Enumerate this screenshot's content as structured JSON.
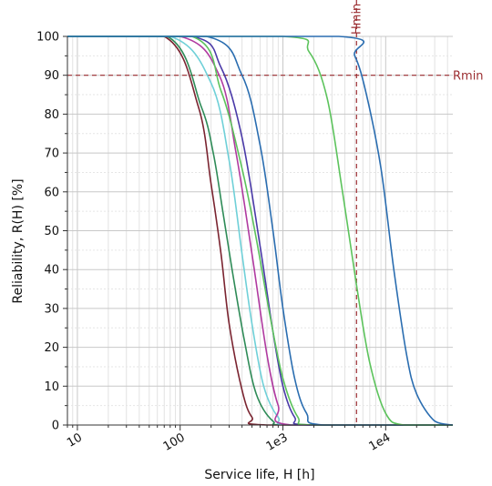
{
  "chart_data": {
    "type": "line",
    "xlabel": "Service life, H [h]",
    "ylabel": "Reliability, R(H) [%]",
    "x_scale": "log",
    "xlim": [
      8,
      45000
    ],
    "ylim": [
      0,
      100
    ],
    "grid": true,
    "x_ticks": [
      {
        "value": 10,
        "label": "10"
      },
      {
        "value": 100,
        "label": "100"
      },
      {
        "value": 1000,
        "label": "1e3"
      },
      {
        "value": 10000,
        "label": "1e4"
      }
    ],
    "y_ticks": [
      {
        "value": 0,
        "label": "0"
      },
      {
        "value": 10,
        "label": "10"
      },
      {
        "value": 20,
        "label": "20"
      },
      {
        "value": 30,
        "label": "30"
      },
      {
        "value": 40,
        "label": "40"
      },
      {
        "value": 50,
        "label": "50"
      },
      {
        "value": 60,
        "label": "60"
      },
      {
        "value": 70,
        "label": "70"
      },
      {
        "value": 80,
        "label": "80"
      },
      {
        "value": 90,
        "label": "90"
      },
      {
        "value": 100,
        "label": "100"
      }
    ],
    "reference_lines": [
      {
        "orientation": "vertical",
        "value": 5200,
        "label": "Hmin",
        "color": "#9b2d30"
      },
      {
        "orientation": "horizontal",
        "value": 90,
        "label": "Rmin",
        "color": "#9b2d30"
      }
    ],
    "series": [
      {
        "color": "#7a2430",
        "points": [
          [
            8,
            100
          ],
          [
            70,
            100
          ],
          [
            150,
            82
          ],
          [
            200,
            62
          ],
          [
            250,
            44
          ],
          [
            300,
            26
          ],
          [
            400,
            9
          ],
          [
            500,
            2
          ],
          [
            700,
            0
          ],
          [
            45000,
            0
          ]
        ]
      },
      {
        "color": "#2e8b57",
        "points": [
          [
            8,
            100
          ],
          [
            75,
            100
          ],
          [
            160,
            82
          ],
          [
            210,
            70
          ],
          [
            260,
            55
          ],
          [
            320,
            40
          ],
          [
            420,
            22
          ],
          [
            550,
            8
          ],
          [
            800,
            1
          ],
          [
            1200,
            0
          ],
          [
            45000,
            0
          ]
        ]
      },
      {
        "color": "#6fd0d8",
        "points": [
          [
            8,
            100
          ],
          [
            80,
            100
          ],
          [
            200,
            88
          ],
          [
            300,
            68
          ],
          [
            400,
            44
          ],
          [
            500,
            26
          ],
          [
            650,
            10
          ],
          [
            900,
            2
          ],
          [
            1300,
            0
          ],
          [
            45000,
            0
          ]
        ]
      },
      {
        "color": "#b03aa0",
        "points": [
          [
            8,
            100
          ],
          [
            100,
            100
          ],
          [
            240,
            90
          ],
          [
            350,
            70
          ],
          [
            500,
            44
          ],
          [
            700,
            18
          ],
          [
            900,
            5
          ],
          [
            1200,
            0
          ],
          [
            45000,
            0
          ]
        ]
      },
      {
        "color": "#4a3aa8",
        "points": [
          [
            8,
            100
          ],
          [
            130,
            100
          ],
          [
            250,
            92
          ],
          [
            400,
            74
          ],
          [
            600,
            46
          ],
          [
            800,
            24
          ],
          [
            1000,
            10
          ],
          [
            1300,
            2
          ],
          [
            1800,
            0
          ],
          [
            45000,
            0
          ]
        ]
      },
      {
        "color": "#5cc35c",
        "points": [
          [
            8,
            100
          ],
          [
            130,
            100
          ],
          [
            250,
            86
          ],
          [
            400,
            66
          ],
          [
            550,
            48
          ],
          [
            750,
            28
          ],
          [
            1000,
            12
          ],
          [
            1400,
            2
          ],
          [
            2000,
            0
          ],
          [
            45000,
            0
          ]
        ]
      },
      {
        "color": "#2a6db0",
        "points": [
          [
            8,
            100
          ],
          [
            180,
            100
          ],
          [
            400,
            90
          ],
          [
            600,
            72
          ],
          [
            800,
            50
          ],
          [
            1000,
            30
          ],
          [
            1300,
            12
          ],
          [
            1700,
            3
          ],
          [
            2500,
            0
          ],
          [
            45000,
            0
          ]
        ]
      },
      {
        "color": "#5cc35c",
        "points": [
          [
            8,
            100
          ],
          [
            1000,
            100
          ],
          [
            1800,
            96
          ],
          [
            2700,
            84
          ],
          [
            3800,
            60
          ],
          [
            5200,
            36
          ],
          [
            7000,
            16
          ],
          [
            10000,
            3
          ],
          [
            15000,
            0
          ],
          [
            45000,
            0
          ]
        ]
      },
      {
        "color": "#2a6db0",
        "points": [
          [
            8,
            100
          ],
          [
            3500,
            100
          ],
          [
            5000,
            95
          ],
          [
            6500,
            85
          ],
          [
            9000,
            66
          ],
          [
            12000,
            40
          ],
          [
            16000,
            18
          ],
          [
            20000,
            8
          ],
          [
            30000,
            1
          ],
          [
            45000,
            0
          ]
        ]
      }
    ]
  }
}
